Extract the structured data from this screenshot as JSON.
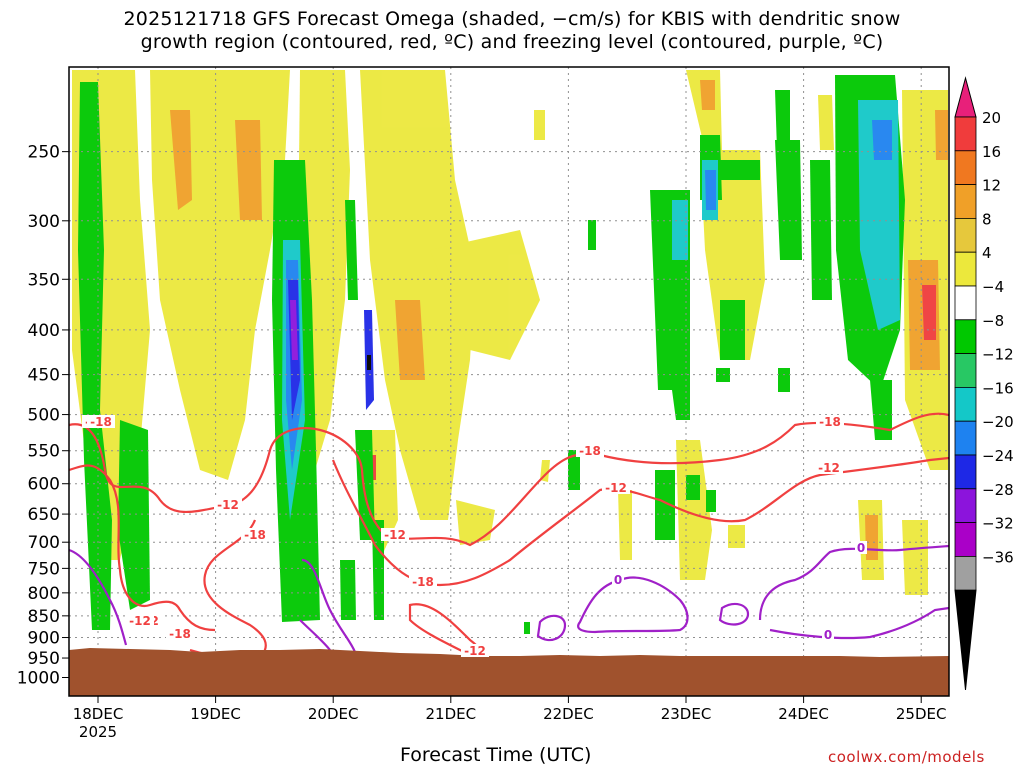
{
  "title_line1": "2025121718 GFS Forecast Omega (shaded, −cm/s) for KBIS with dendritic snow",
  "title_line2": "growth region (contoured, red, ºC) and freezing level (contoured, purple, ºC)",
  "xlabel": "Forecast Time (UTC)",
  "credit": "coolwx.com/models",
  "chart_data": {
    "type": "heatmap",
    "title": "2025121718 GFS Forecast Omega (shaded, −cm/s) for KBIS with dendritic snow growth region (contoured, red, ºC) and freezing level (contoured, purple, ºC)",
    "xlabel": "Forecast Time (UTC)",
    "ylabel": "",
    "x_ticks": [
      "18DEC",
      "19DEC",
      "20DEC",
      "21DEC",
      "22DEC",
      "23DEC",
      "24DEC",
      "25DEC"
    ],
    "x_tick_year": "2025",
    "y_ticks": [
      250,
      300,
      350,
      400,
      450,
      500,
      550,
      600,
      650,
      700,
      750,
      800,
      850,
      900,
      950,
      1000
    ],
    "y_scale": "log-pressure",
    "y_range": [
      200,
      1050
    ],
    "grid": true,
    "colorbar": {
      "labels": [
        "20",
        "16",
        "12",
        "8",
        "4",
        "−4",
        "−8",
        "−12",
        "−16",
        "−20",
        "−24",
        "−28",
        "−32",
        "−36"
      ],
      "colors": [
        "#e8207a",
        "#f03c3c",
        "#f07820",
        "#f0a028",
        "#e6c83c",
        "#ece83c",
        "#ffffff",
        "#00c800",
        "#28c864",
        "#14c8c8",
        "#1e82f0",
        "#1e28e6",
        "#8c14dc",
        "#aa00c8",
        "#a0a0a0",
        "#000000"
      ]
    },
    "contour_labels": {
      "dgz": [
        "-18",
        "-12",
        "-18",
        "-12",
        "-18",
        "-12",
        "-18",
        "-12",
        "-18",
        "-12",
        "-18",
        "-12",
        "-18",
        "-12"
      ],
      "freezing": [
        "0",
        "0",
        "0",
        "0"
      ]
    },
    "terrain_color": "#a0522d",
    "dgz_color": "#f04040",
    "freezing_color": "#a020c8"
  }
}
